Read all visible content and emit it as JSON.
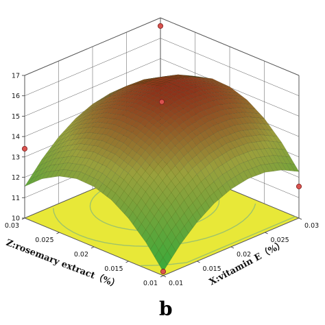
{
  "chart_data": {
    "type": "surface3d",
    "panel_label": "b",
    "x_axis": {
      "label": "X:vitamin E（%）",
      "ticks": [
        "0.01",
        "0.015",
        "0.02",
        "0.025",
        "0.03"
      ],
      "range": [
        0.01,
        0.03
      ]
    },
    "z_axis": {
      "label": "Z:rosemary extract（%）",
      "ticks": [
        "0.01",
        "0.015",
        "0.02",
        "0.025",
        "0.03"
      ],
      "range": [
        0.01,
        0.03
      ]
    },
    "y_axis": {
      "label": "",
      "ticks": [
        "10",
        "11",
        "12",
        "13",
        "14",
        "15",
        "16",
        "17"
      ],
      "range": [
        10,
        17
      ]
    },
    "surface_grid": {
      "x": [
        0.01,
        0.0125,
        0.015,
        0.0175,
        0.02,
        0.0225,
        0.025,
        0.0275,
        0.03
      ],
      "z": [
        0.01,
        0.0125,
        0.015,
        0.0175,
        0.02,
        0.0225,
        0.025,
        0.0275,
        0.03
      ],
      "response": [
        [
          10.2,
          11.28,
          12.1,
          12.66,
          12.95,
          12.99,
          12.76,
          12.28,
          11.55
        ],
        [
          11.16,
          12.24,
          13.06,
          13.62,
          13.91,
          13.95,
          13.72,
          13.24,
          12.51
        ],
        [
          11.92,
          13.0,
          13.82,
          14.38,
          14.67,
          14.71,
          14.48,
          14.0,
          13.27
        ],
        [
          12.48,
          13.56,
          14.38,
          14.94,
          15.23,
          15.27,
          15.04,
          14.56,
          13.83
        ],
        [
          12.83,
          13.91,
          14.73,
          15.29,
          15.58,
          15.62,
          15.39,
          14.91,
          14.18
        ],
        [
          12.99,
          14.07,
          14.89,
          15.45,
          15.74,
          15.78,
          15.55,
          15.07,
          14.34
        ],
        [
          12.95,
          14.03,
          14.85,
          15.41,
          15.7,
          15.74,
          15.51,
          15.03,
          14.3
        ],
        [
          12.71,
          13.79,
          14.61,
          15.17,
          15.46,
          15.5,
          15.27,
          14.79,
          14.06
        ],
        [
          12.28,
          13.36,
          14.18,
          14.74,
          15.03,
          15.07,
          14.84,
          14.36,
          13.63
        ]
      ]
    },
    "design_points": [
      {
        "x": 0.01,
        "z": 0.01,
        "y": 10.2
      },
      {
        "x": 0.03,
        "z": 0.01,
        "y": 11.55
      },
      {
        "x": 0.01,
        "z": 0.03,
        "y": 13.4
      },
      {
        "x": 0.03,
        "z": 0.03,
        "y": 16.6
      },
      {
        "x": 0.02,
        "z": 0.02,
        "y": 15.7
      }
    ],
    "floor_color": "#e8e838",
    "contour_color": "#9ec36a",
    "surface_colors": {
      "low": "#3fa93a",
      "mid": "#9aa03c",
      "high": "#8a1a12"
    }
  }
}
